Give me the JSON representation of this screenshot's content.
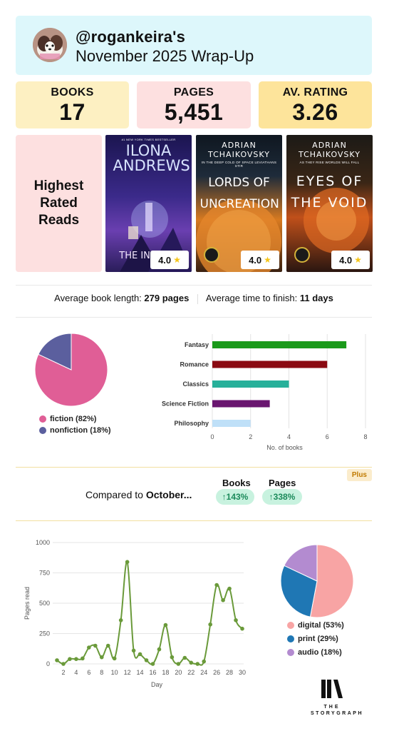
{
  "header": {
    "handle": "@rogankeira's",
    "title": "November 2025 Wrap-Up"
  },
  "stats": [
    {
      "label": "BOOKS",
      "value": "17",
      "color": "#fdf0c2"
    },
    {
      "label": "PAGES",
      "value": "5,451",
      "color": "#fde0e0"
    },
    {
      "label": "AV. RATING",
      "value": "3.26",
      "color": "#fde49b"
    }
  ],
  "highest_rated": {
    "label": "Highest Rated Reads",
    "books": [
      {
        "author": "ILONA ANDREWS",
        "title": "THE INHERIT",
        "tagline": "#1 NEW YORK TIMES BESTSELLER",
        "rating": "4.0"
      },
      {
        "author": "ADRIAN TCHAIKOVSKY",
        "title": "LORDS OF UNCREATION",
        "tagline": "IN THE DEEP COLD OF SPACE LEVIATHANS STIR",
        "rating": "4.0"
      },
      {
        "author": "ADRIAN TCHAIKOVSKY",
        "title": "EYES OF THE VOID",
        "tagline": "AS THEY RISE WORLDS WILL FALL",
        "rating": "4.0"
      }
    ]
  },
  "averages": {
    "length_label": "Average book length:",
    "length_value": "279 pages",
    "time_label": "Average time to finish:",
    "time_value": "11 days"
  },
  "comparison": {
    "badge": "Plus",
    "label_prefix": "Compared to",
    "label_month": "October...",
    "books_title": "Books",
    "books_change": "↑143%",
    "pages_title": "Pages",
    "pages_change": "↑338%"
  },
  "logo": {
    "line1": "THE",
    "line2": "STORYGRAPH"
  },
  "chart_data": [
    {
      "type": "pie",
      "labels": [
        "fiction (82%)",
        "nonfiction (18%)"
      ],
      "values": [
        82,
        18
      ],
      "colors": [
        "#e05e96",
        "#5b5f9e"
      ]
    },
    {
      "type": "bar",
      "orientation": "horizontal",
      "categories": [
        "Fantasy",
        "Romance",
        "Classics",
        "Science Fiction",
        "Philosophy"
      ],
      "values": [
        7,
        6,
        4,
        3,
        2
      ],
      "colors": [
        "#1a9a1a",
        "#8b0a12",
        "#27b09a",
        "#6a1670",
        "#bfe0f8"
      ],
      "xlabel": "No. of books",
      "xticks": [
        "0",
        "2",
        "4",
        "6",
        "8"
      ],
      "xlim": [
        0,
        8
      ],
      "grid": true
    },
    {
      "type": "line",
      "x": [
        1,
        2,
        3,
        4,
        5,
        6,
        7,
        8,
        9,
        10,
        11,
        12,
        13,
        14,
        15,
        16,
        17,
        18,
        19,
        20,
        21,
        22,
        23,
        24,
        25,
        26,
        27,
        28,
        29,
        30
      ],
      "values": [
        30,
        0,
        40,
        40,
        45,
        135,
        150,
        55,
        150,
        45,
        360,
        840,
        110,
        80,
        30,
        0,
        120,
        320,
        55,
        0,
        50,
        10,
        0,
        20,
        325,
        650,
        525,
        620,
        360,
        290
      ],
      "color": "#6a9a3a",
      "xlabel": "Day",
      "ylabel": "Pages read",
      "xticks": [
        "2",
        "4",
        "6",
        "8",
        "10",
        "12",
        "14",
        "16",
        "18",
        "20",
        "22",
        "24",
        "26",
        "28",
        "30"
      ],
      "yticks": [
        "0",
        "250",
        "500",
        "750",
        "1000"
      ],
      "ylim": [
        0,
        1000
      ],
      "grid": true
    },
    {
      "type": "pie",
      "labels": [
        "digital (53%)",
        "print (29%)",
        "audio (18%)"
      ],
      "values": [
        53,
        29,
        18
      ],
      "colors": [
        "#f8a4a4",
        "#1f77b4",
        "#b38bd0"
      ]
    }
  ]
}
